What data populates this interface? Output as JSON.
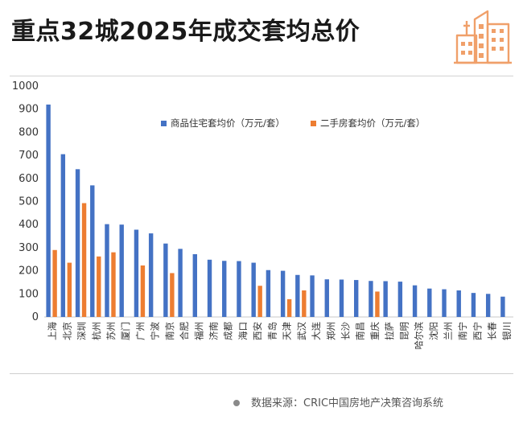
{
  "title": "重点32城2025年成交套均总价",
  "source": "数据来源：CRIC中国房地产决策咨询系统",
  "colors": {
    "new_homes": "#4472C4",
    "second_hand": "#ED7D31",
    "logo": "#F0A06A"
  },
  "logo_icon": "building-icon",
  "chart_data": {
    "type": "bar",
    "title": "",
    "xlabel": "",
    "ylabel": "",
    "ylim": [
      0,
      1000
    ],
    "yticks": [
      0,
      100,
      200,
      300,
      400,
      500,
      600,
      700,
      800,
      900,
      1000
    ],
    "grid": false,
    "legend_position": "top-right",
    "categories": [
      "上海",
      "北京",
      "深圳",
      "杭州",
      "苏州",
      "厦门",
      "广州",
      "宁波",
      "南京",
      "合肥",
      "福州",
      "济南",
      "成都",
      "海口",
      "西安",
      "青岛",
      "天津",
      "武汉",
      "大连",
      "郑州",
      "长沙",
      "南昌",
      "重庆",
      "拉萨",
      "昆明",
      "哈尔滨",
      "沈阳",
      "兰州",
      "南宁",
      "西宁",
      "长春",
      "银川"
    ],
    "series": [
      {
        "name": "商品住宅套均价（万元/套）",
        "color": "#4472C4",
        "values": [
          920,
          705,
          640,
          570,
          402,
          400,
          378,
          362,
          318,
          295,
          272,
          248,
          243,
          242,
          235,
          203,
          200,
          182,
          180,
          163,
          162,
          160,
          156,
          155,
          153,
          137,
          123,
          120,
          115,
          104,
          100,
          88
        ]
      },
      {
        "name": "二手房套均价（万元/套）",
        "color": "#ED7D31",
        "values": [
          290,
          235,
          493,
          262,
          280,
          null,
          223,
          null,
          190,
          null,
          null,
          null,
          null,
          null,
          135,
          null,
          77,
          115,
          null,
          null,
          null,
          null,
          110,
          null,
          null,
          null,
          null,
          null,
          null,
          null,
          null,
          null
        ]
      }
    ]
  }
}
